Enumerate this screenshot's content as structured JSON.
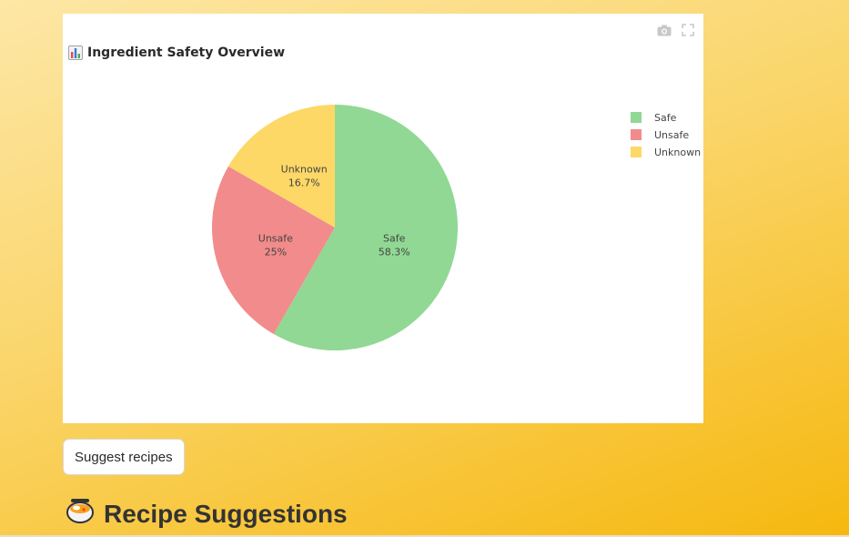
{
  "chart": {
    "title": "Ingredient Safety Overview",
    "title_icon": "bar-chart-icon",
    "toolbar": {
      "camera_icon": "camera-icon",
      "fullscreen_icon": "fullscreen-icon"
    }
  },
  "chart_data": {
    "type": "pie",
    "title": "Ingredient Safety Overview",
    "slices": [
      {
        "label": "Safe",
        "value": 58.3,
        "text": "58.3%",
        "color": "#90d893"
      },
      {
        "label": "Unsafe",
        "value": 25,
        "text": "25%",
        "color": "#f28b8b"
      },
      {
        "label": "Unknown",
        "value": 16.7,
        "text": "16.7%",
        "color": "#fdd866"
      }
    ],
    "legend_order": [
      "Safe",
      "Unsafe",
      "Unknown"
    ],
    "legend_position": "top-right"
  },
  "actions": {
    "suggest_label": "Suggest recipes"
  },
  "recipes": {
    "heading": "Recipe Suggestions",
    "heading_icon": "curry-bowl-icon"
  }
}
